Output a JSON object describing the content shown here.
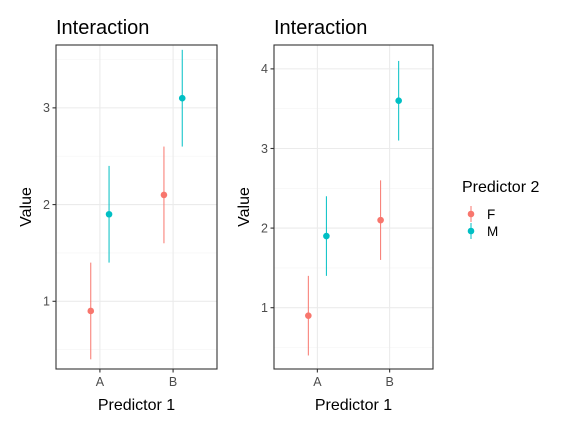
{
  "chart_data": [
    {
      "type": "scatter",
      "title": "Interaction",
      "xlabel": "Predictor 1",
      "ylabel": "Value",
      "categories": [
        "A",
        "B"
      ],
      "yticks": [
        1,
        2,
        3
      ],
      "ylim": [
        0.3,
        3.65
      ],
      "series": [
        {
          "name": "F",
          "color": "#F8766D",
          "values": [
            0.9,
            2.1
          ],
          "lower": [
            0.4,
            1.6
          ],
          "upper": [
            1.4,
            2.6
          ]
        },
        {
          "name": "M",
          "color": "#00BFC4",
          "values": [
            1.9,
            3.1
          ],
          "lower": [
            1.4,
            2.6
          ],
          "upper": [
            2.4,
            3.6
          ]
        }
      ]
    },
    {
      "type": "scatter",
      "title": "Interaction",
      "xlabel": "Predictor 1",
      "ylabel": "Value",
      "categories": [
        "A",
        "B"
      ],
      "yticks": [
        1,
        2,
        3,
        4
      ],
      "ylim": [
        0.23,
        4.3
      ],
      "series": [
        {
          "name": "F",
          "color": "#F8766D",
          "values": [
            0.9,
            2.1
          ],
          "lower": [
            0.4,
            1.6
          ],
          "upper": [
            1.4,
            2.6
          ]
        },
        {
          "name": "M",
          "color": "#00BFC4",
          "values": [
            1.9,
            3.6
          ],
          "lower": [
            1.4,
            3.1
          ],
          "upper": [
            2.4,
            4.1
          ]
        }
      ]
    }
  ],
  "legend": {
    "title": "Predictor 2",
    "items": [
      {
        "label": "F",
        "color": "#F8766D"
      },
      {
        "label": "M",
        "color": "#00BFC4"
      }
    ]
  }
}
